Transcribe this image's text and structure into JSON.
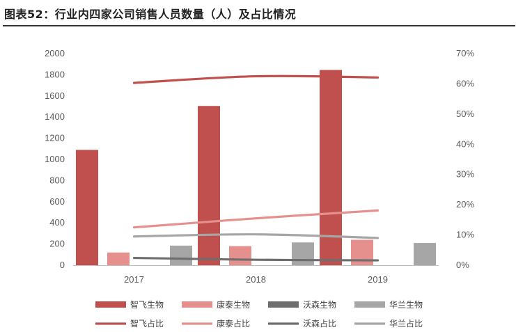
{
  "title": "图表52：行业内四家公司销售人员数量（人）及占比情况",
  "chart_data": {
    "type": "bar+line",
    "categories": [
      "2017",
      "2018",
      "2019"
    ],
    "y_left": {
      "min": 0,
      "max": 2000,
      "ticks": [
        "0",
        "200",
        "400",
        "600",
        "800",
        "1000",
        "1200",
        "1400",
        "1600",
        "1800",
        "2000"
      ]
    },
    "y_right": {
      "min": 0,
      "max": 0.7,
      "ticks": [
        "0%",
        "10%",
        "20%",
        "30%",
        "40%",
        "50%",
        "60%",
        "70%"
      ]
    },
    "bar_series": [
      {
        "name": "智飞生物",
        "color": "#c0504d",
        "values": [
          1090,
          1505,
          1845
        ]
      },
      {
        "name": "康泰生物",
        "color": "#e6908e",
        "values": [
          120,
          180,
          240
        ]
      },
      {
        "name": "沃森生物",
        "color": "#6e6e6e",
        "values": [
          0,
          0,
          0
        ]
      },
      {
        "name": "华兰生物",
        "color": "#a6a6a6",
        "values": [
          185,
          215,
          210
        ]
      }
    ],
    "line_series": [
      {
        "name": "智飞占比",
        "color": "#c0504d",
        "values": [
          0.603,
          0.625,
          0.621
        ]
      },
      {
        "name": "康泰占比",
        "color": "#e6908e",
        "values": [
          0.125,
          0.155,
          0.181
        ]
      },
      {
        "name": "沃森占比",
        "color": "#6e6e6e",
        "values": [
          0.024,
          0.018,
          0.016
        ]
      },
      {
        "name": "华兰占比",
        "color": "#a6a6a6",
        "values": [
          0.095,
          0.102,
          0.09
        ]
      }
    ],
    "grid": false,
    "legend_position": "bottom"
  }
}
